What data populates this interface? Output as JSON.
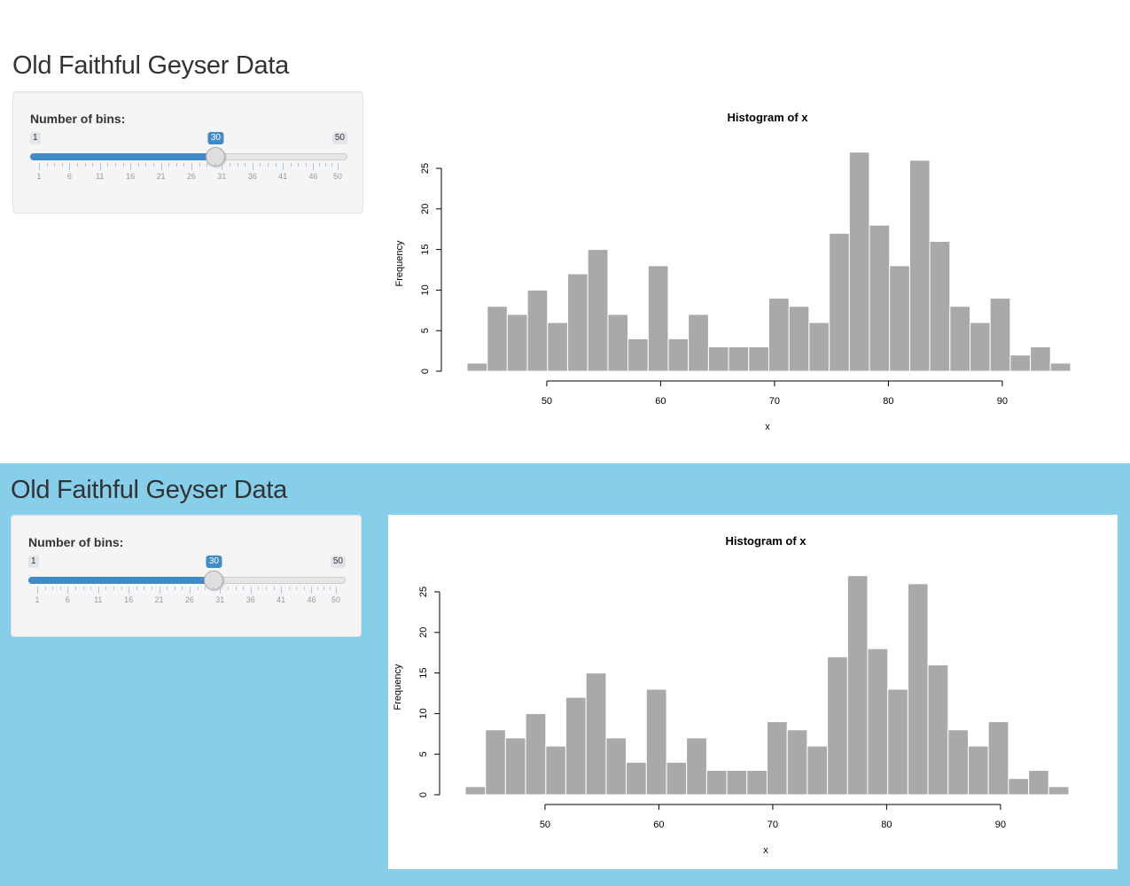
{
  "app": {
    "title": "Old Faithful Geyser Data",
    "slider": {
      "label": "Number of bins:",
      "min": 1,
      "max": 50,
      "value": 30,
      "min_label": "1",
      "max_label": "50",
      "value_label": "30",
      "grid_labels": [
        "1",
        "6",
        "11",
        "16",
        "21",
        "26",
        "31",
        "36",
        "41",
        "46",
        "50"
      ]
    },
    "colors": {
      "accent": "#428bca",
      "bar_fill": "#a9a9a9",
      "bottom_background": "#87ceeb"
    }
  },
  "chart_data": {
    "type": "bar",
    "title": "Histogram of x",
    "xlabel": "x",
    "ylabel": "Frequency",
    "bin_edges": [
      43.0,
      44.77,
      46.53,
      48.3,
      50.07,
      51.83,
      53.6,
      55.37,
      57.13,
      58.9,
      60.67,
      62.43,
      64.2,
      65.97,
      67.73,
      69.5,
      71.27,
      73.03,
      74.8,
      76.57,
      78.33,
      80.1,
      81.87,
      83.63,
      85.4,
      87.17,
      88.93,
      90.7,
      92.47,
      94.23,
      96.0
    ],
    "values": [
      1,
      8,
      7,
      10,
      6,
      12,
      15,
      7,
      4,
      13,
      4,
      7,
      3,
      3,
      3,
      9,
      8,
      6,
      17,
      27,
      18,
      13,
      26,
      16,
      8,
      6,
      9,
      2,
      3,
      1
    ],
    "xticks": [
      "50",
      "60",
      "70",
      "80",
      "90"
    ],
    "yticks": [
      "0",
      "5",
      "10",
      "15",
      "20",
      "25"
    ],
    "xlim": [
      43,
      96
    ],
    "ylim": [
      0,
      25
    ]
  }
}
